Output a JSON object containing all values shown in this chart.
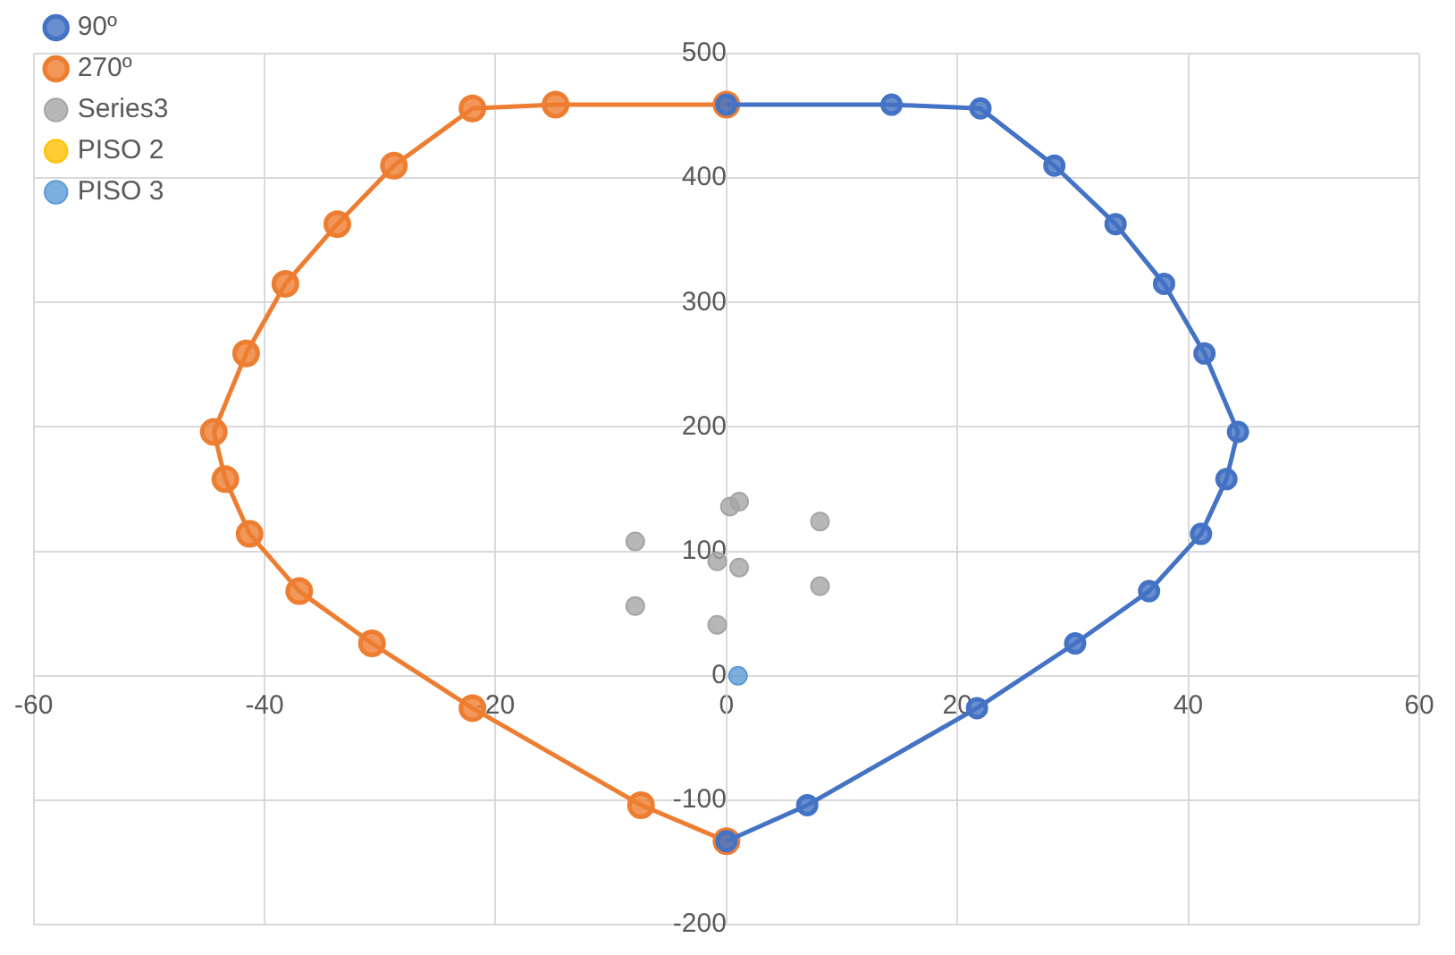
{
  "chart_data": {
    "type": "scatter",
    "xlim": [
      -60,
      60
    ],
    "xticks": [
      -60,
      -40,
      -20,
      0,
      20,
      40,
      60
    ],
    "ylim": [
      -200,
      500
    ],
    "yticks": [
      -200,
      -100,
      0,
      100,
      200,
      300,
      400,
      500
    ],
    "grid": true,
    "legend": "top left",
    "marker": "circle",
    "series": [
      {
        "name": "90º",
        "type": "line",
        "color": "#4472c4",
        "x": [
          0,
          7,
          21.7,
          30.2,
          36.6,
          41.1,
          43.3,
          44.3,
          41.4,
          37.9,
          33.7,
          28.4,
          22,
          14.3,
          0
        ],
        "values": [
          -133,
          -104,
          -26,
          26,
          68,
          114,
          158,
          196,
          259,
          315,
          363,
          410,
          456,
          459,
          459
        ]
      },
      {
        "name": "270º",
        "type": "line",
        "color": "#ed7d31",
        "x": [
          0,
          -7.4,
          -22,
          -30.7,
          -37,
          -41.3,
          -43.4,
          -44.4,
          -41.6,
          -38.2,
          -33.7,
          -28.8,
          -22,
          -14.8,
          0
        ],
        "values": [
          -133,
          -104,
          -26,
          26,
          68,
          114,
          158,
          196,
          259,
          315,
          363,
          410,
          456,
          459,
          459
        ]
      },
      {
        "name": "Series3",
        "color": "#a5a5a5",
        "x": [
          -7.9,
          -7.9,
          -0.8,
          -0.8,
          1.1,
          0.3,
          1.1,
          8.1,
          8.1
        ],
        "values": [
          108,
          56,
          41,
          92,
          87,
          136,
          140,
          124,
          72
        ]
      },
      {
        "name": "PISO 2",
        "color": "#ffc000"
      },
      {
        "name": "PISO 3",
        "color": "#5b9bd5",
        "x": [
          1
        ],
        "values": [
          0
        ]
      }
    ]
  }
}
